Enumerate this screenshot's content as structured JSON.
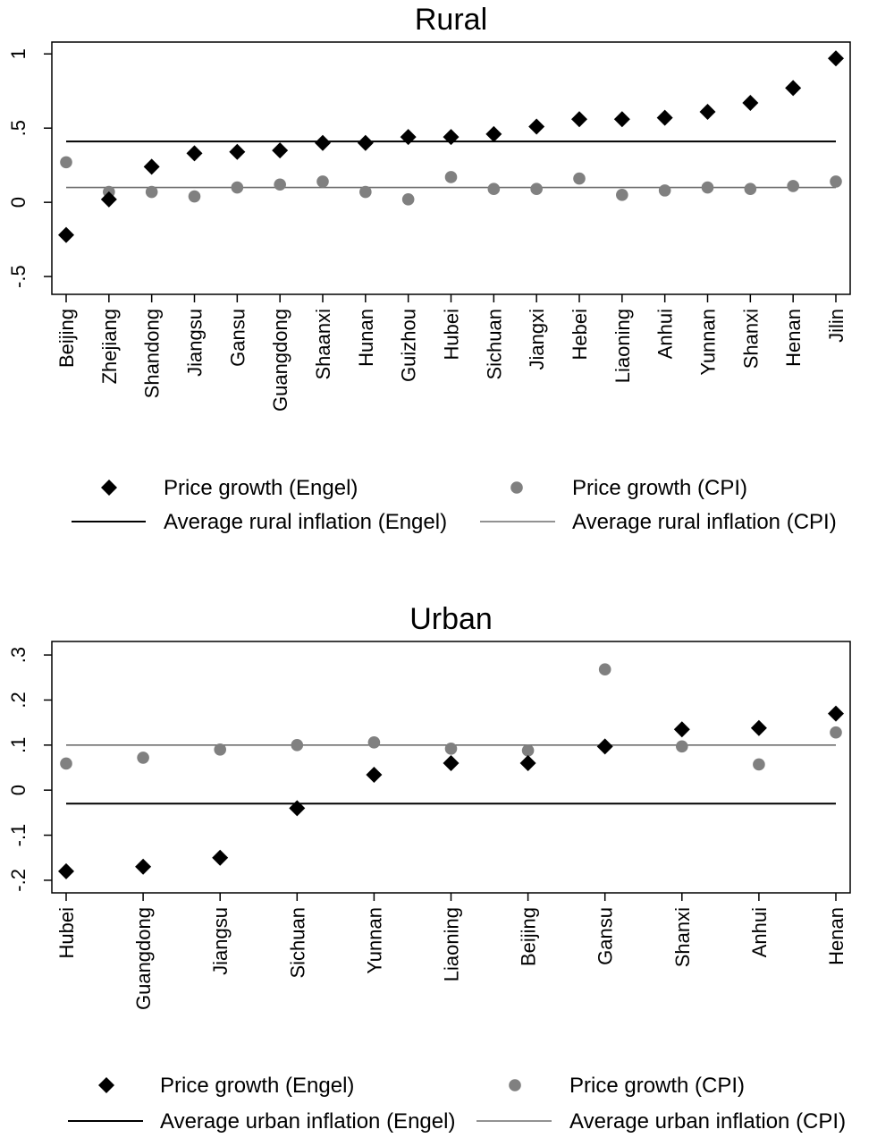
{
  "chart_data": [
    {
      "type": "scatter",
      "title": "Rural",
      "xlabel": "",
      "ylabel": "",
      "ylim": [
        -0.62,
        1.08
      ],
      "yticks": [
        -0.5,
        0,
        0.5,
        1
      ],
      "ytick_labels": [
        "-.5",
        "0",
        ".5",
        "1"
      ],
      "grid": false,
      "legend_position": "bottom",
      "categories": [
        "Beijing",
        "Zhejiang",
        "Shandong",
        "Jiangsu",
        "Gansu",
        "Guangdong",
        "Shaanxi",
        "Hunan",
        "Guizhou",
        "Hubei",
        "Sichuan",
        "Jiangxi",
        "Hebei",
        "Liaoning",
        "Anhui",
        "Yunnan",
        "Shanxi",
        "Henan",
        "Jilin"
      ],
      "series": [
        {
          "name": "Price growth (Engel)",
          "marker": "diamond",
          "color": "#000000",
          "values": [
            -0.22,
            0.02,
            0.24,
            0.33,
            0.34,
            0.35,
            0.4,
            0.4,
            0.44,
            0.44,
            0.46,
            0.51,
            0.56,
            0.56,
            0.57,
            0.61,
            0.67,
            0.77,
            0.97
          ]
        },
        {
          "name": "Price growth (CPI)",
          "marker": "circle",
          "color": "#808080",
          "values": [
            0.27,
            0.07,
            0.07,
            0.04,
            0.1,
            0.12,
            0.14,
            0.07,
            0.02,
            0.17,
            0.09,
            0.09,
            0.16,
            0.05,
            0.08,
            0.1,
            0.09,
            0.11,
            0.14
          ]
        }
      ],
      "reference_lines": [
        {
          "name": "Average rural inflation (Engel)",
          "value": 0.41,
          "color": "#000000"
        },
        {
          "name": "Average rural inflation (CPI)",
          "value": 0.1,
          "color": "#6e6e6e"
        }
      ]
    },
    {
      "type": "scatter",
      "title": "Urban",
      "xlabel": "",
      "ylabel": "",
      "ylim": [
        -0.228,
        0.33
      ],
      "yticks": [
        -0.2,
        -0.1,
        0,
        0.1,
        0.2,
        0.3
      ],
      "ytick_labels": [
        "-.2",
        "-.1",
        "0",
        ".1",
        ".2",
        ".3"
      ],
      "grid": false,
      "legend_position": "bottom",
      "categories": [
        "Hubei",
        "Guangdong",
        "Jiangsu",
        "Sichuan",
        "Yunnan",
        "Liaoning",
        "Beijing",
        "Gansu",
        "Shanxi",
        "Anhui",
        "Henan"
      ],
      "series": [
        {
          "name": "Price growth (Engel)",
          "marker": "diamond",
          "color": "#000000",
          "values": [
            -0.18,
            -0.17,
            -0.15,
            -0.04,
            0.034,
            0.06,
            0.06,
            0.097,
            0.135,
            0.138,
            0.17
          ]
        },
        {
          "name": "Price growth (CPI)",
          "marker": "circle",
          "color": "#808080",
          "values": [
            0.059,
            0.072,
            0.09,
            0.1,
            0.106,
            0.092,
            0.088,
            0.268,
            0.097,
            0.057,
            0.128
          ]
        }
      ],
      "reference_lines": [
        {
          "name": "Average urban inflation (Engel)",
          "value": -0.03,
          "color": "#000000"
        },
        {
          "name": "Average urban inflation (CPI)",
          "value": 0.1,
          "color": "#6e6e6e"
        }
      ]
    }
  ]
}
